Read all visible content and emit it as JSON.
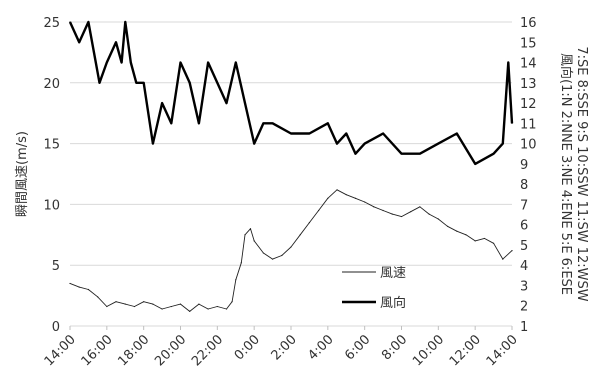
{
  "chart_data": {
    "type": "line",
    "title": "",
    "ylabel": "瞬間風速(m/s)",
    "y2label_line1": "風向(1:N 2:NNE 3:NE 4:ENE 5:E 6:ESE",
    "y2label_line2": "7:SE 8:SSE 9:S 10:SSW 11:SW 12:WSW",
    "xlabel": "",
    "x_ticks": [
      "14:00",
      "16:00",
      "18:00",
      "20:00",
      "22:00",
      "0:00",
      "2:00",
      "4:00",
      "6:00",
      "8:00",
      "10:00",
      "12:00",
      "14:00"
    ],
    "ylim": [
      0,
      25
    ],
    "y_ticks": [
      0,
      5,
      10,
      15,
      20,
      25
    ],
    "y2lim": [
      1,
      16
    ],
    "y2_ticks": [
      1,
      2,
      3,
      4,
      5,
      6,
      7,
      8,
      9,
      10,
      11,
      12,
      13,
      14,
      15,
      16
    ],
    "grid": "horizontal",
    "legend_position": "bottom-center",
    "series": [
      {
        "name": "風速",
        "axis": "left",
        "color": "#222222",
        "width": 0.9,
        "x_hours": [
          0,
          0.5,
          1,
          1.5,
          2,
          2.5,
          3,
          3.5,
          4,
          4.5,
          5,
          5.5,
          6,
          6.5,
          7,
          7.5,
          8,
          8.5,
          8.8,
          9,
          9.3,
          9.5,
          9.8,
          10,
          10.5,
          11,
          11.5,
          12,
          12.5,
          13,
          13.5,
          14,
          14.5,
          15,
          15.5,
          16,
          16.5,
          17,
          17.5,
          18,
          18.5,
          19,
          19.5,
          20,
          20.5,
          21,
          21.5,
          22,
          22.5,
          23,
          23.5,
          24
        ],
        "values": [
          3.5,
          3.2,
          3.0,
          2.4,
          1.6,
          2.0,
          1.8,
          1.6,
          2.0,
          1.8,
          1.4,
          1.6,
          1.8,
          1.2,
          1.8,
          1.4,
          1.6,
          1.4,
          2.0,
          3.8,
          5.2,
          7.5,
          8.0,
          7.0,
          6.0,
          5.5,
          5.8,
          6.5,
          7.5,
          8.5,
          9.5,
          10.5,
          11.2,
          10.8,
          10.5,
          10.2,
          9.8,
          9.5,
          9.2,
          9.0,
          9.4,
          9.8,
          9.2,
          8.8,
          8.2,
          7.8,
          7.5,
          7.0,
          7.2,
          6.8,
          5.5,
          6.2
        ]
      },
      {
        "name": "風向",
        "axis": "right",
        "color": "#000000",
        "width": 2.4,
        "x_hours": [
          0,
          0.5,
          1,
          1.4,
          1.6,
          2,
          2.5,
          2.8,
          3,
          3.3,
          3.6,
          4,
          4.5,
          5,
          5.5,
          6,
          6.5,
          7,
          7.5,
          8,
          8.5,
          9,
          9.5,
          10,
          10.5,
          11,
          12,
          13,
          14,
          14.5,
          15,
          15.5,
          16,
          17,
          18,
          19,
          20,
          21,
          22,
          23,
          23.5,
          23.8,
          24
        ],
        "values": [
          16,
          15,
          16,
          14,
          13,
          14,
          15,
          14,
          16,
          14,
          13,
          13,
          10,
          12,
          11,
          14,
          13,
          11,
          14,
          13,
          12,
          14,
          12,
          10,
          11,
          11,
          10.5,
          10.5,
          11,
          10,
          10.5,
          9.5,
          10,
          10.5,
          9.5,
          9.5,
          10,
          10.5,
          9,
          9.5,
          10,
          14,
          11
        ]
      }
    ]
  }
}
